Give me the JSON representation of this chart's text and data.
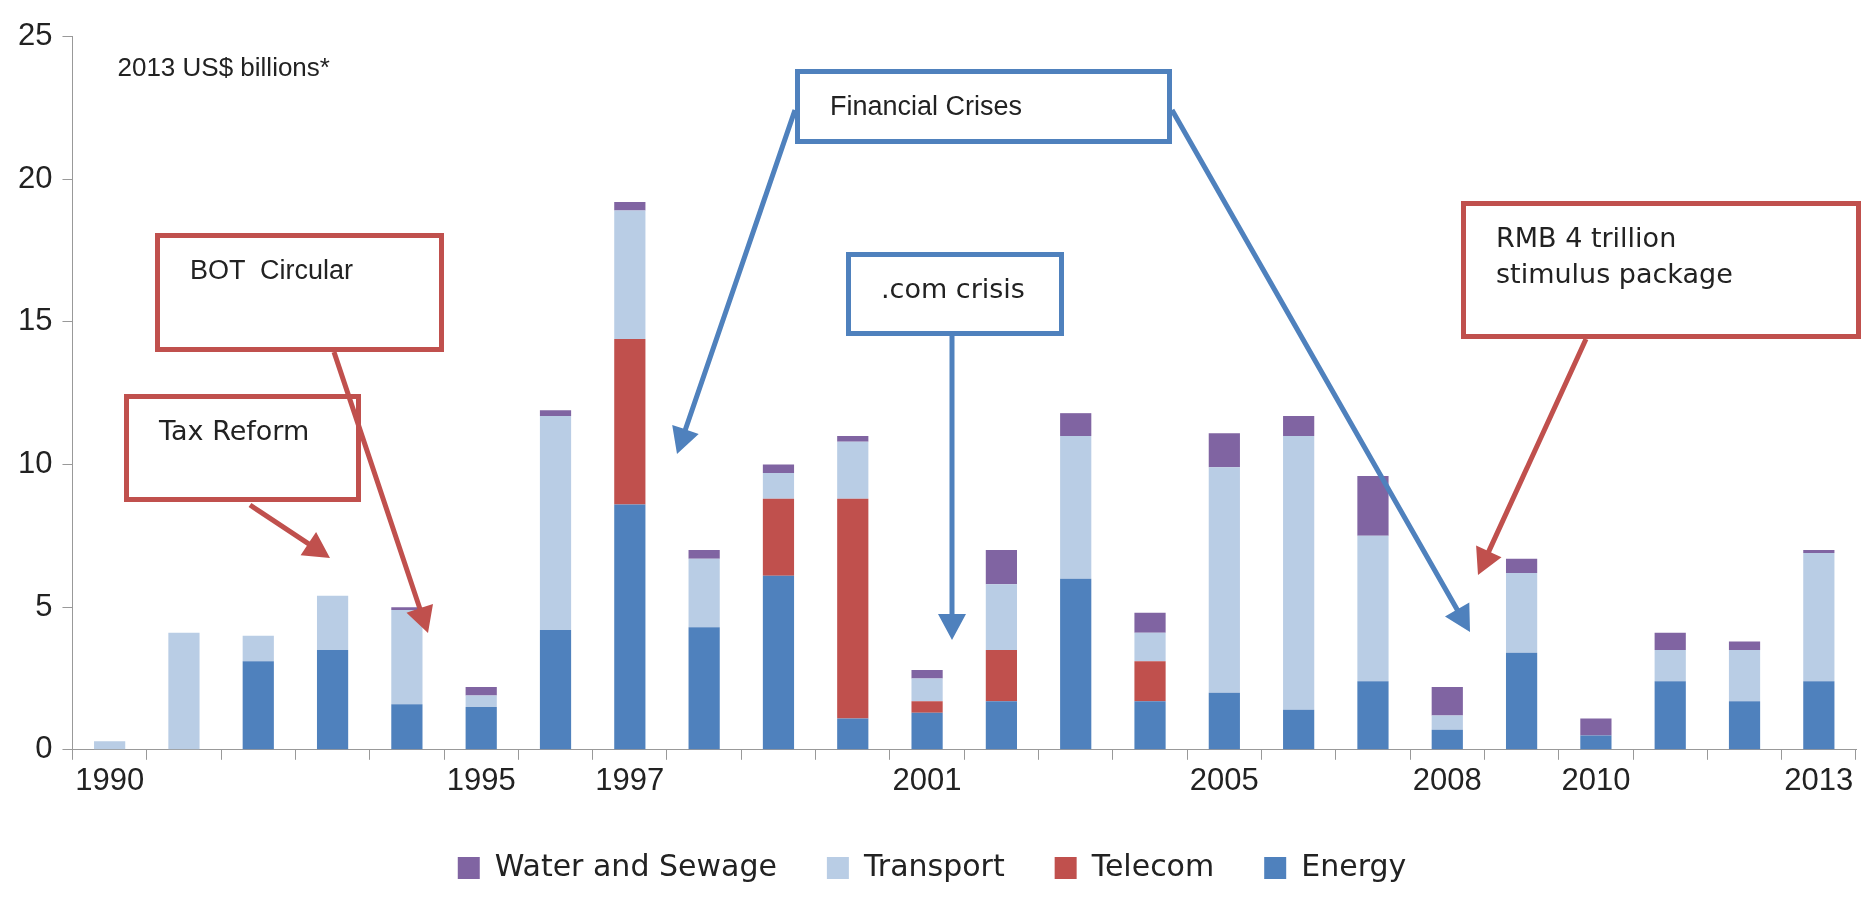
{
  "chart_data": {
    "type": "bar",
    "stacked": true,
    "categories": [
      "1990",
      null,
      null,
      null,
      null,
      "1995",
      null,
      "1997",
      null,
      null,
      null,
      "2001",
      null,
      null,
      null,
      "2005",
      null,
      null,
      "2008",
      null,
      "2010",
      null,
      null,
      "2013"
    ],
    "series": [
      {
        "name": "Energy",
        "color": "#4f81bd",
        "values": [
          0,
          0,
          3.1,
          3.5,
          1.6,
          1.5,
          4.2,
          8.6,
          4.3,
          6.1,
          1.1,
          1.3,
          1.7,
          6.0,
          1.7,
          2.0,
          1.4,
          2.4,
          0.7,
          3.4,
          0.5,
          2.4,
          1.7,
          2.4
        ]
      },
      {
        "name": "Telecom",
        "color": "#c0504d",
        "values": [
          0,
          0,
          0,
          0,
          0,
          0,
          0,
          5.8,
          0,
          2.7,
          7.7,
          0.4,
          1.8,
          0,
          1.4,
          0,
          0,
          0,
          0,
          0,
          0,
          0,
          0,
          0
        ]
      },
      {
        "name": "Transport",
        "color": "#b9cde5",
        "values": [
          0.3,
          4.1,
          0.9,
          1.9,
          3.3,
          0.4,
          7.5,
          4.5,
          2.4,
          0.9,
          2.0,
          0.8,
          2.3,
          5.0,
          1.0,
          7.9,
          9.6,
          5.1,
          0.5,
          2.8,
          0,
          1.1,
          1.8,
          4.5
        ]
      },
      {
        "name": "Water and Sewage",
        "color": "#8064a2",
        "values": [
          0,
          0,
          0,
          0,
          0.1,
          0.3,
          0.2,
          0.3,
          0.3,
          0.3,
          0.2,
          0.3,
          1.2,
          0.8,
          0.7,
          1.2,
          0.7,
          2.1,
          1.0,
          0.5,
          0.6,
          0.6,
          0.3,
          0.1
        ]
      }
    ],
    "ylabel": "2013 US$ billions*",
    "ylim": [
      0,
      25
    ],
    "yticks": [
      0,
      5,
      10,
      15,
      20,
      25
    ],
    "grid": false,
    "legend": "bottom",
    "annotations": [
      "Tax Reform",
      "BOT  Circular",
      "Financial Crises",
      ".com crisis",
      "RMB 4 trillion stimulus package"
    ]
  }
}
